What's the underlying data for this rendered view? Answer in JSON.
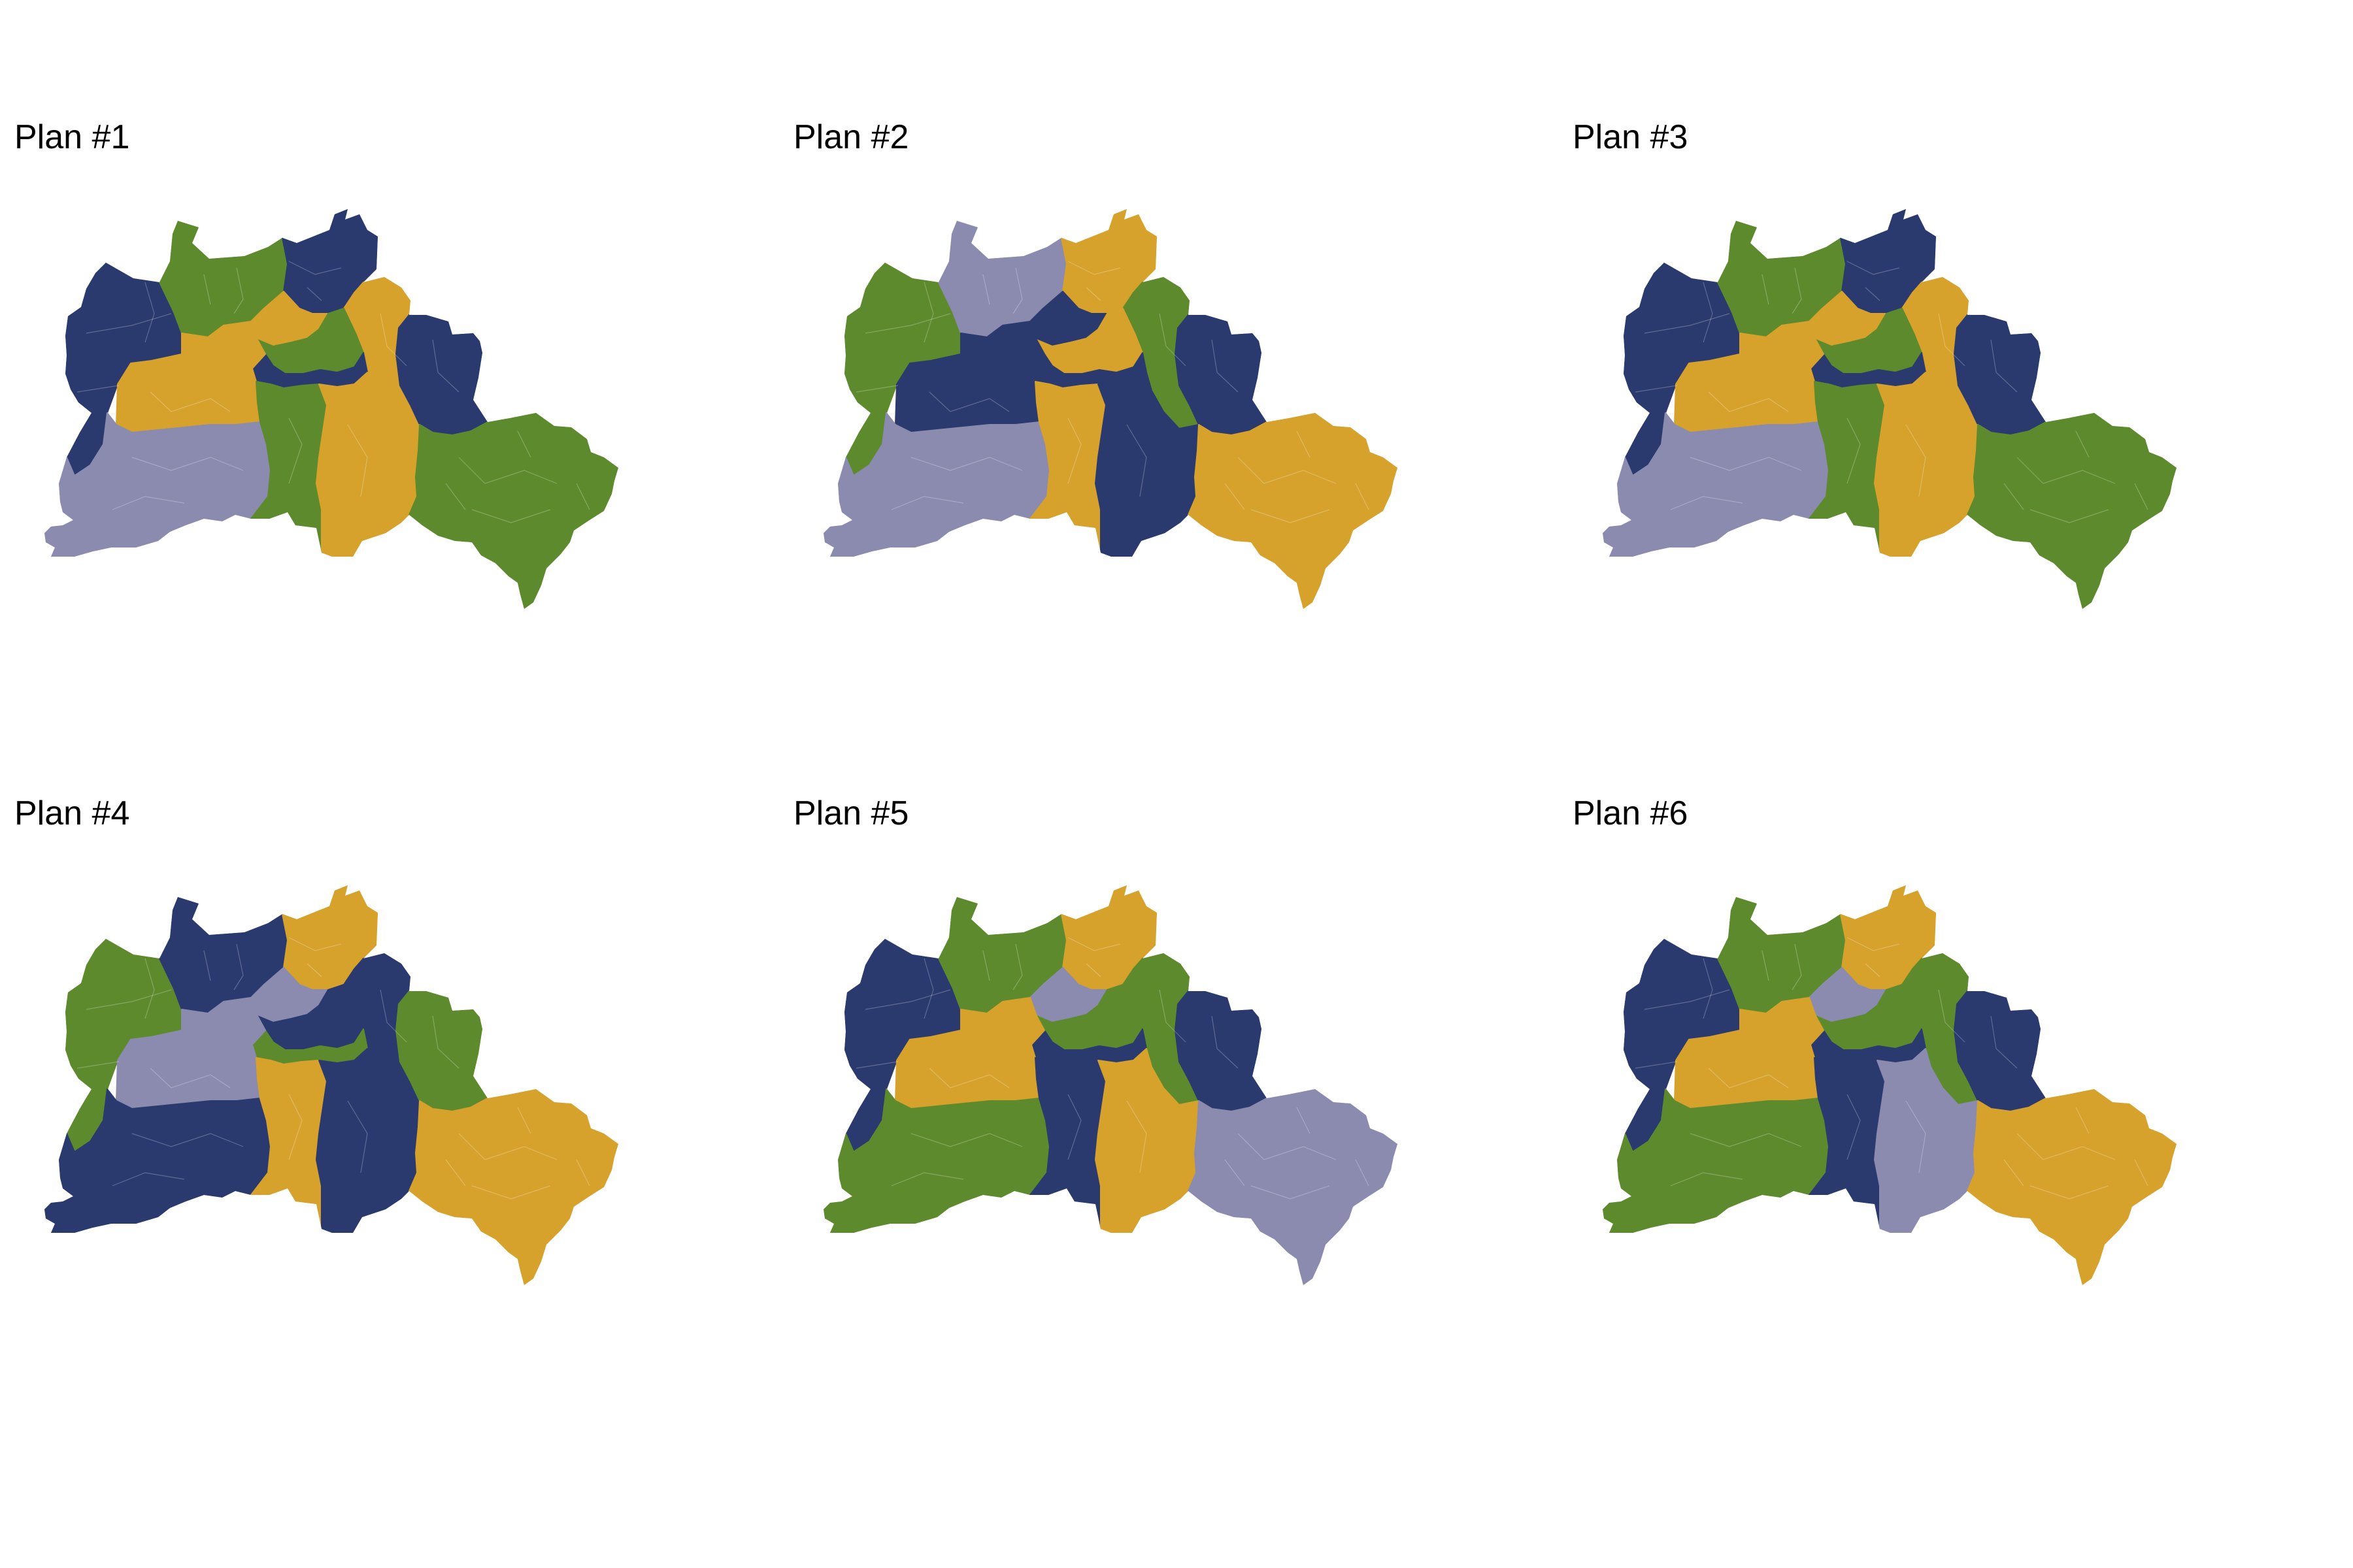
{
  "colors": {
    "navy": "#2b3a6e",
    "green": "#5e8a2e",
    "gold": "#d6a22c",
    "lavender": "#8b8bb0",
    "district_border": "#ffffff"
  },
  "plans": [
    {
      "title": "Plan #1",
      "zones": {
        "west": "navy",
        "northwest": "green",
        "north": "navy",
        "northeast": "gold",
        "east": "navy",
        "center_north": "gold",
        "center": "green",
        "center_south": "navy",
        "west_central": "gold",
        "southwest": "lavender",
        "south_center": "green",
        "south": "gold",
        "southeast": "green"
      }
    },
    {
      "title": "Plan #2",
      "zones": {
        "west": "green",
        "northwest": "lavender",
        "north": "gold",
        "northeast": "green",
        "east": "navy",
        "center_north": "navy",
        "center": "gold",
        "center_south": "navy",
        "west_central": "navy",
        "southwest": "lavender",
        "south_center": "gold",
        "south": "navy",
        "southeast": "gold"
      }
    },
    {
      "title": "Plan #3",
      "zones": {
        "west": "navy",
        "northwest": "green",
        "north": "navy",
        "northeast": "gold",
        "east": "navy",
        "center_north": "gold",
        "center": "green",
        "center_south": "navy",
        "west_central": "gold",
        "southwest": "lavender",
        "south_center": "green",
        "south": "gold",
        "southeast": "green"
      }
    },
    {
      "title": "Plan #4",
      "zones": {
        "west": "green",
        "northwest": "navy",
        "north": "gold",
        "northeast": "navy",
        "east": "green",
        "center_north": "lavender",
        "center": "navy",
        "center_south": "green",
        "west_central": "lavender",
        "southwest": "navy",
        "south_center": "gold",
        "south": "navy",
        "southeast": "gold"
      }
    },
    {
      "title": "Plan #5",
      "zones": {
        "west": "navy",
        "northwest": "green",
        "north": "gold",
        "northeast": "green",
        "east": "navy",
        "center_north": "lavender",
        "center": "green",
        "center_south": "navy",
        "west_central": "gold",
        "southwest": "green",
        "south_center": "navy",
        "south": "gold",
        "southeast": "lavender"
      }
    },
    {
      "title": "Plan #6",
      "zones": {
        "west": "navy",
        "northwest": "green",
        "north": "gold",
        "northeast": "green",
        "east": "navy",
        "center_north": "lavender",
        "center": "green",
        "center_south": "navy",
        "west_central": "gold",
        "southwest": "green",
        "south_center": "navy",
        "south": "lavender",
        "southeast": "gold"
      }
    }
  ]
}
